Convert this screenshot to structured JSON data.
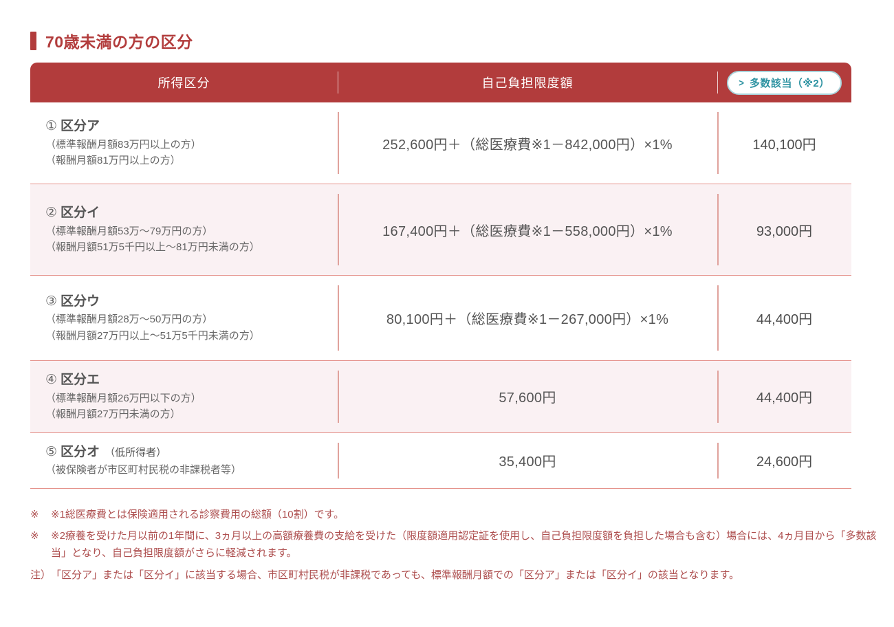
{
  "page": {
    "title": "70歳未満の方の区分"
  },
  "table": {
    "header": {
      "col_income": "所得区分",
      "col_limit": "自己負担限度額",
      "multiple_link": {
        "arrow": ">",
        "label": "多数該当（※2）"
      }
    },
    "rows": [
      {
        "num": "①",
        "name": "区分ア",
        "suffix": "",
        "sub1": "（標準報酬月額83万円以上の方）",
        "sub2": "（報酬月額81万円以上の方）",
        "limit": "252,600円＋（総医療費※1－842,000円）×1%",
        "multiple": "140,100円"
      },
      {
        "num": "②",
        "name": "区分イ",
        "suffix": "",
        "sub1": "（標準報酬月額53万～79万円の方）",
        "sub2": "（報酬月額51万5千円以上～81万円未満の方）",
        "limit": "167,400円＋（総医療費※1－558,000円）×1%",
        "multiple": "93,000円"
      },
      {
        "num": "③",
        "name": "区分ウ",
        "suffix": "",
        "sub1": "（標準報酬月額28万～50万円の方）",
        "sub2": "（報酬月額27万円以上～51万5千円未満の方）",
        "limit": "80,100円＋（総医療費※1－267,000円）×1%",
        "multiple": "44,400円"
      },
      {
        "num": "④",
        "name": "区分エ",
        "suffix": "",
        "sub1": "（標準報酬月額26万円以下の方）",
        "sub2": "（報酬月額27万円未満の方）",
        "limit": "57,600円",
        "multiple": "44,400円"
      },
      {
        "num": "⑤",
        "name": "区分オ",
        "suffix": "（低所得者）",
        "sub1": "（被保険者が市区町村民税の非課税者等）",
        "sub2": "",
        "limit": "35,400円",
        "multiple": "24,600円"
      }
    ]
  },
  "footnotes": [
    {
      "marker": "※",
      "text": "※1総医療費とは保険適用される診察費用の総額（10割）です。"
    },
    {
      "marker": "※",
      "text": "※2療養を受けた月以前の1年間に、3ヵ月以上の高額療養費の支給を受けた（限度額適用認定証を使用し、自己負担限度額を負担した場合も含む）場合には、4ヵ月目から「多数該当」となり、自己負担限度額がさらに軽減されます。"
    },
    {
      "marker": "注）",
      "text": "「区分ア」または「区分イ」に該当する場合、市区町村民税が非課税であっても、標準報酬月額での「区分ア」または「区分イ」の該当となります。"
    }
  ],
  "colors": {
    "brand_red": "#b23c3c",
    "row_pink": "#faf1f3",
    "border_salmon": "#e5928b",
    "teal": "#2e93a2",
    "footnote_red": "#ae4f4f"
  }
}
